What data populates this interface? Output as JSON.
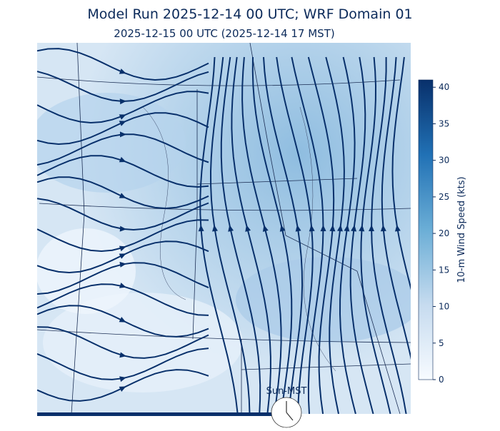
{
  "title": "Model Run 2025-12-14 00 UTC; WRF Domain 01",
  "subtitle": "2025-12-15 00 UTC  (2025-12-14 17 MST)",
  "colorbar": {
    "label": "10-m Wind Speed (kts)",
    "lim": [
      0,
      41
    ],
    "ticks": [
      0,
      5,
      10,
      15,
      20,
      25,
      30,
      35,
      40
    ],
    "colors": [
      "#f7fbff",
      "#c6dbef",
      "#6baed6",
      "#2171b5",
      "#08306b"
    ]
  },
  "clock_label": "Sun-MST"
}
